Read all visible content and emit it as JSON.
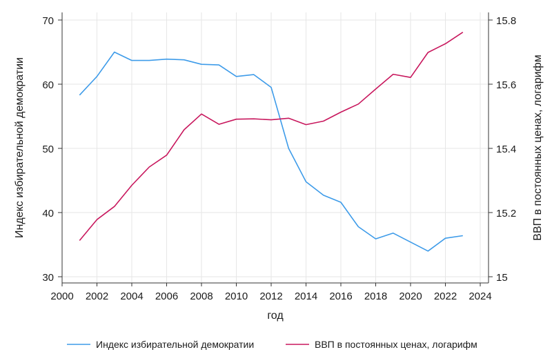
{
  "chart_data": {
    "type": "line",
    "title": "",
    "xlabel": "год",
    "ylabel_left": "Индекс избирательной демократии",
    "ylabel_right": "ВВП в постоянных ценах, логарифм",
    "xlim": [
      2000,
      2024
    ],
    "ylim_left": [
      30,
      70
    ],
    "ylim_right": [
      15.0,
      15.8
    ],
    "x_ticks": [
      "2000",
      "2002",
      "2004",
      "2006",
      "2008",
      "2010",
      "2012",
      "2014",
      "2016",
      "2018",
      "2020",
      "2022",
      "2024"
    ],
    "y_left_ticks": [
      "30",
      "40",
      "50",
      "60",
      "70"
    ],
    "y_right_ticks": [
      "15",
      "15.2",
      "15.4",
      "15.6",
      "15.8"
    ],
    "grid": true,
    "legend_position": "bottom",
    "series": [
      {
        "name": "Индекс избирательной демократии",
        "axis": "left",
        "color": "#3d9be9",
        "x": [
          2001,
          2002,
          2003,
          2004,
          2005,
          2006,
          2007,
          2008,
          2009,
          2010,
          2011,
          2012,
          2013,
          2014,
          2015,
          2016,
          2017,
          2018,
          2019,
          2020,
          2021,
          2022,
          2023
        ],
        "values": [
          58.3,
          61.2,
          65.0,
          63.7,
          63.7,
          63.9,
          63.8,
          63.1,
          63.0,
          61.2,
          61.5,
          59.5,
          50.0,
          44.8,
          42.7,
          41.6,
          37.8,
          35.9,
          36.8,
          35.4,
          34.0,
          36.0,
          36.4
        ]
      },
      {
        "name": "ВВП в постоянных ценах, логарифм",
        "axis": "right",
        "color": "#c8175d",
        "x": [
          2001,
          2002,
          2003,
          2004,
          2005,
          2006,
          2007,
          2008,
          2009,
          2010,
          2011,
          2012,
          2013,
          2014,
          2015,
          2016,
          2017,
          2018,
          2019,
          2020,
          2021,
          2022,
          2023
        ],
        "values": [
          15.113,
          15.178,
          15.219,
          15.285,
          15.342,
          15.379,
          15.458,
          15.507,
          15.475,
          15.491,
          15.492,
          15.489,
          15.494,
          15.474,
          15.485,
          15.513,
          15.538,
          15.585,
          15.631,
          15.621,
          15.699,
          15.726,
          15.762
        ]
      }
    ]
  }
}
